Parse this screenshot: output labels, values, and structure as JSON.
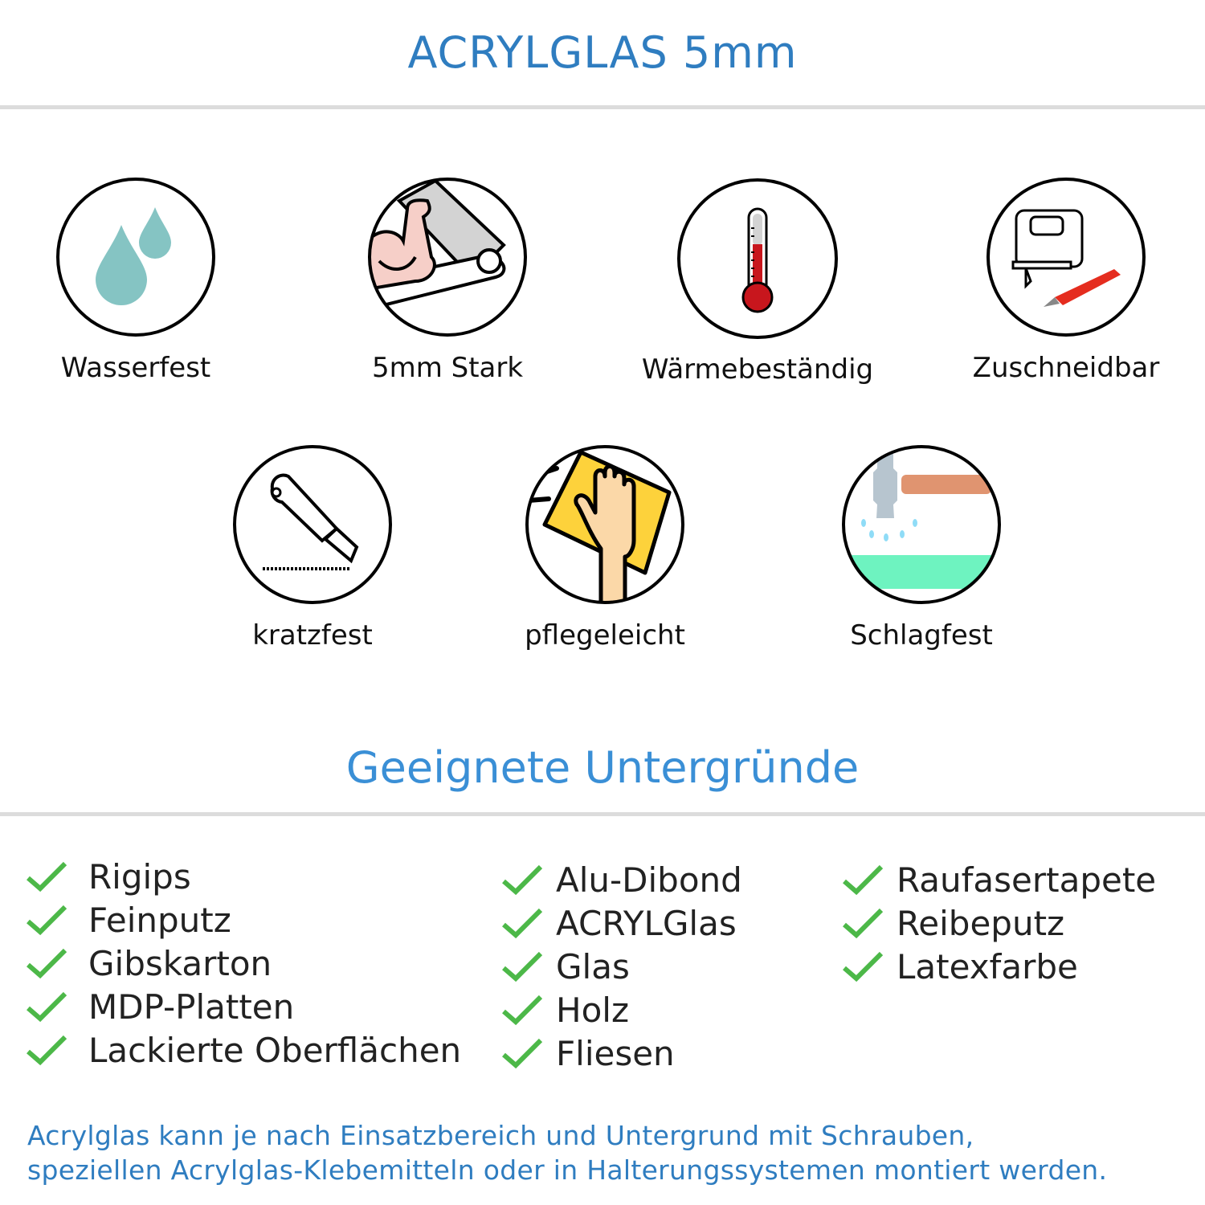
{
  "title": "ACRYLGLAS 5mm",
  "features": [
    {
      "label": "Wasserfest",
      "icon": "water-drops-icon"
    },
    {
      "label": "5mm Stark",
      "icon": "strong-arm-icon"
    },
    {
      "label": "Wärmebeständig",
      "icon": "thermometer-icon"
    },
    {
      "label": "Zuschneidbar",
      "icon": "jigsaw-knife-icon"
    },
    {
      "label": "kratzfest",
      "icon": "cutter-knife-icon"
    },
    {
      "label": "pflegeleicht",
      "icon": "hand-cloth-icon"
    },
    {
      "label": "Schlagfest",
      "icon": "hammer-icon"
    }
  ],
  "surfaces_title": "Geeignete Untergründe",
  "surfaces": {
    "col1": [
      "Rigips",
      "Feinputz",
      "Gibskarton",
      "MDP-Platten",
      "Lackierte Oberflächen"
    ],
    "col2": [
      "Alu-Dibond",
      "ACRYLGlas",
      "Glas",
      "Holz",
      "Fliesen"
    ],
    "col3": [
      "Raufasertapete",
      "Reibeputz",
      "Latexfarbe"
    ]
  },
  "footer": {
    "line1": "Acrylglas kann je nach Einsatzbereich und Untergrund mit Schrauben,",
    "line2": "speziellen Acrylglas-Klebemitteln oder in Halterungssystemen montiert werden."
  },
  "colors": {
    "accent": "#2f7dc0",
    "check": "#4cb848"
  }
}
